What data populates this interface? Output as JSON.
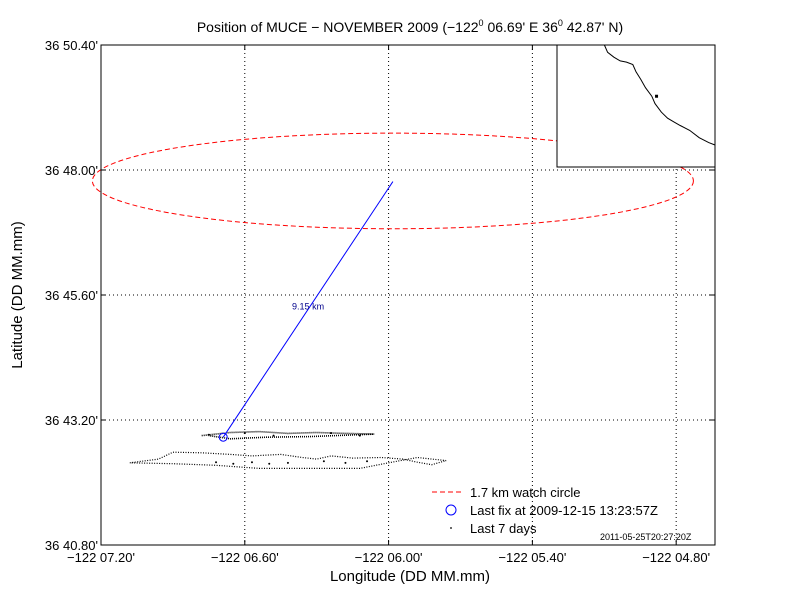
{
  "chart_data": {
    "type": "scatter",
    "title": "Position of MUCE − NOVEMBER 2009 (−122",
    "title_parts": {
      "lon_deg": "−122",
      "lon_rest": " 06.69' E  36",
      "lat_rest": " 42.87' N)",
      "degree_sup": "0"
    },
    "xlabel": "Longitude (DD MM.mm)",
    "ylabel": "Latitude (DD MM.mm)",
    "xlim": [
      -122.12,
      -122.0773
    ],
    "ylim": [
      36.68,
      36.84
    ],
    "x_ticks": [
      {
        "value": -122.12,
        "label": "−122 07.20'"
      },
      {
        "value": -122.11,
        "label": "−122 06.60'"
      },
      {
        "value": -122.1,
        "label": "−122 06.00'"
      },
      {
        "value": -122.09,
        "label": "−122 05.40'"
      },
      {
        "value": -122.08,
        "label": "−122 04.80'"
      }
    ],
    "y_ticks": [
      {
        "value": 36.68,
        "label": "36 40.80'"
      },
      {
        "value": 36.72,
        "label": "36 43.20'"
      },
      {
        "value": 36.76,
        "label": "36 45.60'"
      },
      {
        "value": 36.8,
        "label": "36 48.00'"
      },
      {
        "value": 36.84,
        "label": "36 50.40'"
      }
    ],
    "grid": true,
    "watch_circle": {
      "center_lon": -122.0997,
      "center_lat": 36.7965,
      "radius_lon": 0.0209,
      "radius_lat": 0.0153,
      "label": "1.7 km watch circle",
      "color": "#ff0000"
    },
    "center_point": {
      "lon": -122.0997,
      "lat": 36.7963
    },
    "last_fix": {
      "lon": -122.1115,
      "lat": 36.7145,
      "label": "Last fix at 2009-12-15 13:23:57Z",
      "color": "#0000ff"
    },
    "distance_label": "9.15 km",
    "track_label": "Last 7 days",
    "track_upper": [
      [
        -122.113,
        36.715
      ],
      [
        -122.111,
        36.716
      ],
      [
        -122.109,
        36.7163
      ],
      [
        -122.107,
        36.7157
      ],
      [
        -122.105,
        36.716
      ],
      [
        -122.103,
        36.7157
      ],
      [
        -122.101,
        36.7155
      ],
      [
        -122.1055,
        36.7147
      ],
      [
        -122.1085,
        36.7145
      ],
      [
        -122.111,
        36.714
      ],
      [
        -122.1125,
        36.715
      ]
    ],
    "track_lower": [
      [
        -122.118,
        36.7063
      ],
      [
        -122.116,
        36.7075
      ],
      [
        -122.115,
        36.7097
      ],
      [
        -122.113,
        36.7095
      ],
      [
        -122.111,
        36.709
      ],
      [
        -122.1095,
        36.7085
      ],
      [
        -122.1075,
        36.709
      ],
      [
        -122.106,
        36.708
      ],
      [
        -122.105,
        36.7075
      ],
      [
        -122.104,
        36.7085
      ],
      [
        -122.1025,
        36.7078
      ],
      [
        -122.1005,
        36.708
      ],
      [
        -122.099,
        36.7075
      ],
      [
        -122.098,
        36.7065
      ],
      [
        -122.097,
        36.7057
      ],
      [
        -122.096,
        36.707
      ],
      [
        -122.098,
        36.708
      ],
      [
        -122.1,
        36.7063
      ],
      [
        -122.102,
        36.7045
      ],
      [
        -122.106,
        36.7045
      ],
      [
        -122.109,
        36.7045
      ],
      [
        -122.112,
        36.7055
      ],
      [
        -122.115,
        36.706
      ],
      [
        -122.118,
        36.7063
      ]
    ],
    "track_dots": [
      [
        -122.112,
        36.7065
      ],
      [
        -122.1108,
        36.706
      ],
      [
        -122.1095,
        36.7065
      ],
      [
        -122.1083,
        36.706
      ],
      [
        -122.107,
        36.7063
      ],
      [
        -122.1045,
        36.7068
      ],
      [
        -122.103,
        36.7063
      ],
      [
        -122.1015,
        36.7068
      ],
      [
        -122.1125,
        36.7153
      ],
      [
        -122.11,
        36.7158
      ],
      [
        -122.108,
        36.715
      ],
      [
        -122.104,
        36.7158
      ],
      [
        -122.102,
        36.715
      ]
    ],
    "inset_coast": [
      [
        0.3,
        0.0
      ],
      [
        0.32,
        0.06
      ],
      [
        0.36,
        0.1
      ],
      [
        0.4,
        0.13
      ],
      [
        0.44,
        0.14
      ],
      [
        0.48,
        0.16
      ],
      [
        0.5,
        0.22
      ],
      [
        0.53,
        0.28
      ],
      [
        0.56,
        0.35
      ],
      [
        0.6,
        0.42
      ],
      [
        0.62,
        0.48
      ],
      [
        0.66,
        0.55
      ],
      [
        0.7,
        0.6
      ],
      [
        0.74,
        0.63
      ],
      [
        0.78,
        0.66
      ],
      [
        0.84,
        0.7
      ],
      [
        0.9,
        0.76
      ],
      [
        0.96,
        0.8
      ],
      [
        1.0,
        0.82
      ]
    ],
    "inset_marker": [
      0.63,
      0.42
    ],
    "timestamp": "2011-05-25T20:27:20Z"
  }
}
